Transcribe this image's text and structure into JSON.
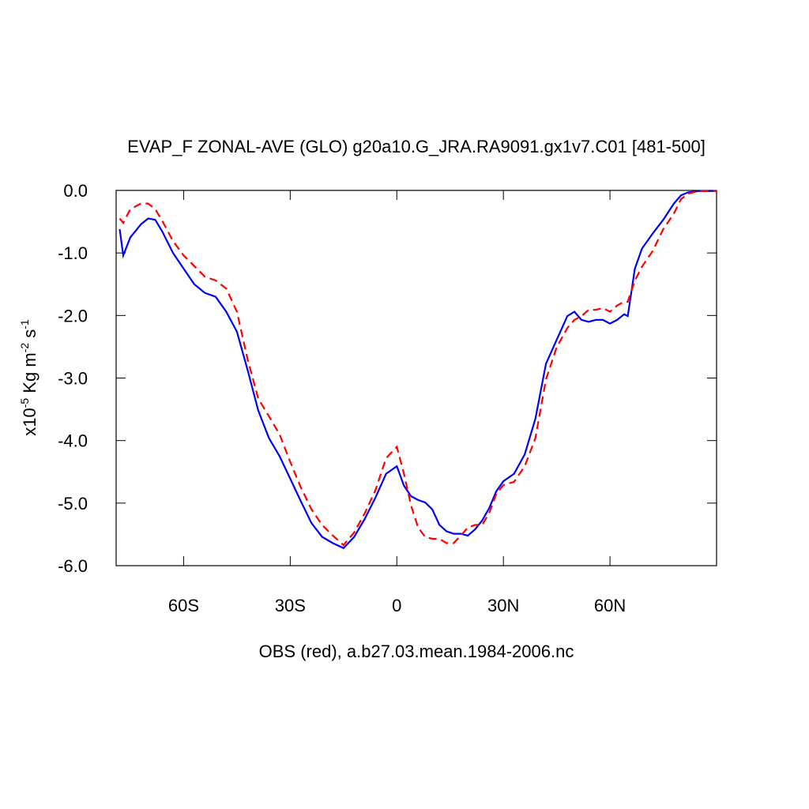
{
  "chart_data": {
    "type": "line",
    "title": "EVAP_F ZONAL-AVE (GLO) g20a10.G_JRA.RA9091.gx1v7.C01 [481-500]",
    "xlabel": "OBS (red), a.b27.03.mean.1984-2006.nc",
    "ylabel": [
      "x10",
      "-5",
      " Kg m",
      "-2",
      " s",
      "-1"
    ],
    "x": [
      -78,
      -77,
      -75,
      -72,
      -70,
      -68,
      -66,
      -63,
      -60,
      -57,
      -54,
      -51,
      -48,
      -45,
      -42,
      -39,
      -36,
      -33,
      -30,
      -27,
      -24,
      -21,
      -18,
      -15,
      -12,
      -9,
      -6,
      -3,
      0,
      2,
      4,
      6,
      8,
      10,
      12,
      14,
      16,
      18,
      20,
      22,
      24,
      26,
      28,
      30,
      33,
      36,
      39,
      42,
      45,
      48,
      50,
      52,
      54,
      56,
      58,
      60,
      62,
      64,
      65,
      67,
      69,
      72,
      75,
      78,
      80,
      82,
      85,
      88,
      90
    ],
    "series": [
      {
        "color": "#0000ff",
        "dash": "none",
        "values": [
          -0.62,
          -1.04,
          -0.75,
          -0.54,
          -0.45,
          -0.47,
          -0.66,
          -1.0,
          -1.25,
          -1.5,
          -1.64,
          -1.7,
          -1.94,
          -2.26,
          -2.87,
          -3.52,
          -3.96,
          -4.25,
          -4.61,
          -4.97,
          -5.32,
          -5.54,
          -5.64,
          -5.72,
          -5.54,
          -5.25,
          -4.91,
          -4.53,
          -4.41,
          -4.72,
          -4.89,
          -4.95,
          -4.99,
          -5.1,
          -5.35,
          -5.45,
          -5.49,
          -5.49,
          -5.52,
          -5.42,
          -5.28,
          -5.08,
          -4.81,
          -4.65,
          -4.53,
          -4.22,
          -3.65,
          -2.77,
          -2.39,
          -2.01,
          -1.94,
          -2.07,
          -2.1,
          -2.07,
          -2.07,
          -2.13,
          -2.07,
          -1.98,
          -2.01,
          -1.25,
          -0.93,
          -0.69,
          -0.47,
          -0.21,
          -0.08,
          -0.03,
          -0.01,
          -0.01,
          -0.01
        ]
      },
      {
        "color": "#ff0000",
        "dash": "10,6",
        "values": [
          -0.45,
          -0.52,
          -0.3,
          -0.21,
          -0.21,
          -0.3,
          -0.49,
          -0.81,
          -1.04,
          -1.21,
          -1.38,
          -1.44,
          -1.57,
          -1.94,
          -2.7,
          -3.33,
          -3.61,
          -3.9,
          -4.34,
          -4.75,
          -5.1,
          -5.35,
          -5.52,
          -5.67,
          -5.47,
          -5.16,
          -4.79,
          -4.28,
          -4.1,
          -4.53,
          -5.04,
          -5.39,
          -5.54,
          -5.57,
          -5.57,
          -5.64,
          -5.64,
          -5.52,
          -5.39,
          -5.35,
          -5.35,
          -5.16,
          -4.85,
          -4.71,
          -4.66,
          -4.41,
          -3.96,
          -3.02,
          -2.51,
          -2.2,
          -2.07,
          -2.01,
          -1.91,
          -1.91,
          -1.88,
          -1.94,
          -1.84,
          -1.78,
          -1.78,
          -1.44,
          -1.22,
          -0.97,
          -0.62,
          -0.37,
          -0.14,
          -0.05,
          -0.01,
          -0.01,
          -0.01
        ]
      }
    ],
    "xlim": [
      -79,
      90
    ],
    "ylim": [
      -6,
      0
    ],
    "xticks": [
      {
        "value": -60,
        "label": "60S"
      },
      {
        "value": -30,
        "label": "30S"
      },
      0,
      {
        "value": 30,
        "label": "30N"
      },
      {
        "value": 60,
        "label": "60N"
      }
    ],
    "yticks": [
      {
        "value": 0,
        "label": "0.0"
      },
      {
        "value": -1,
        "label": "-1.0"
      },
      {
        "value": -2,
        "label": "-2.0"
      },
      {
        "value": -3,
        "label": "-3.0"
      },
      {
        "value": -4,
        "label": "-4.0"
      },
      {
        "value": -5,
        "label": "-5.0"
      },
      {
        "value": -6,
        "label": "-6.0"
      }
    ]
  }
}
